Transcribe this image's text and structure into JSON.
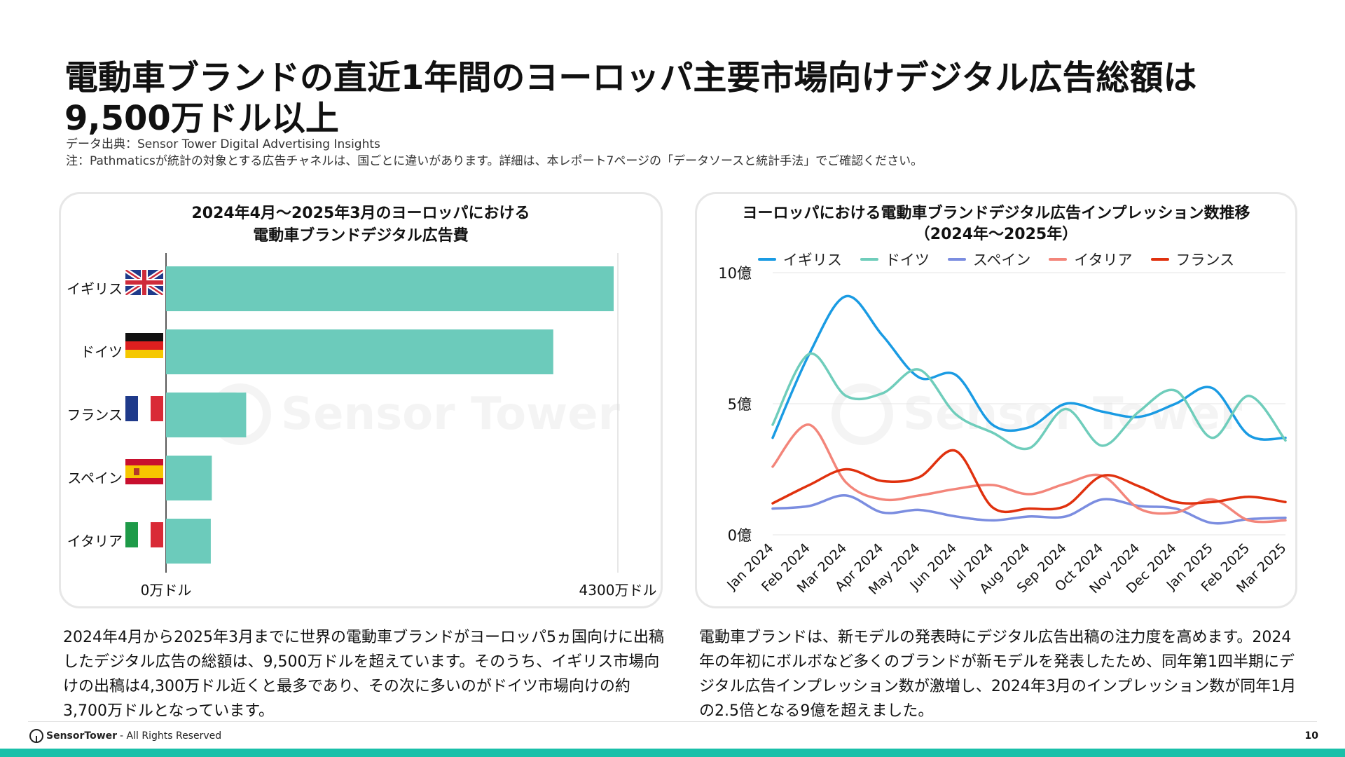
{
  "page": {
    "title": "電動車ブランドの直近1年間のヨーロッパ主要市場向けデジタル広告総額は9,500万ドル以上",
    "source_line": "データ出典：Sensor Tower Digital Advertising Insights",
    "note_line": "注：Pathmaticsが統計の対象とする広告チャネルは、国ごとに違いがあります。詳細は、本レポート7ページの「データソースと統計手法」でご確認ください。",
    "watermark": "Sensor Tower",
    "left_text": "2024年4月から2025年3月までに世界の電動車ブランドがヨーロッパ5ヵ国向けに出稿したデジタル広告の総額は、9,500万ドルを超えています。そのうち、イギリス市場向けの出稿は4,300万ドル近くと最多であり、その次に多いのがドイツ市場向けの約3,700万ドルとなっています。",
    "right_text": "電動車ブランドは、新モデルの発表時にデジタル広告出稿の注力度を高めます。2024年の年初にボルボなど多くのブランドが新モデルを発表したため、同年第1四半期にデジタル広告インプレッション数が激増し、2024年3月のインプレッション数が同年1月の2.5倍となる9億を超えました。",
    "footer_brand": "SensorTower",
    "footer_rights": "- All Rights Reserved",
    "page_number": "10"
  },
  "chart_data": [
    {
      "type": "bar",
      "orientation": "horizontal",
      "title_line1": "2024年4月～2025年3月のヨーロッパにおける",
      "title_line2": "電動車ブランドデジタル広告費",
      "categories": [
        "イギリス",
        "ドイツ",
        "フランス",
        "スペイン",
        "イタリア"
      ],
      "flags": [
        "uk-flag-icon",
        "germany-flag-icon",
        "france-flag-icon",
        "spain-flag-icon",
        "italy-flag-icon"
      ],
      "values": [
        4300,
        3720,
        770,
        440,
        430
      ],
      "unit": "万ドル",
      "xlim": [
        0,
        4300
      ],
      "x_tick_labels": [
        "0万ドル",
        "4300万ドル"
      ],
      "bar_color": "#6ccbbb"
    },
    {
      "type": "line",
      "title_line1": "ヨーロッパにおける電動車ブランドデジタル広告インプレッション数推移",
      "title_line2": "（2024年～2025年）",
      "x": [
        "Jan 2024",
        "Feb 2024",
        "Mar 2024",
        "Apr 2024",
        "May 2024",
        "Jun 2024",
        "Jul 2024",
        "Aug 2024",
        "Sep 2024",
        "Oct 2024",
        "Nov 2024",
        "Dec 2024",
        "Jan 2025",
        "Feb 2025",
        "Mar 2025"
      ],
      "ylim": [
        0,
        10
      ],
      "y_unit": "億",
      "y_ticks": [
        0,
        5,
        10
      ],
      "y_tick_labels": [
        "0億",
        "5億",
        "10億"
      ],
      "grid": true,
      "legend_position": "top",
      "series": [
        {
          "name": "イギリス",
          "color": "#1a9be3",
          "values": [
            3.7,
            6.9,
            9.1,
            7.6,
            6.0,
            6.1,
            4.2,
            4.1,
            5.0,
            4.7,
            4.5,
            5.0,
            5.6,
            3.8,
            3.7
          ]
        },
        {
          "name": "ドイツ",
          "color": "#6fcdbb",
          "values": [
            4.2,
            6.9,
            5.3,
            5.4,
            6.3,
            4.6,
            3.9,
            3.3,
            4.8,
            3.4,
            4.7,
            5.5,
            3.7,
            5.3,
            3.6
          ]
        },
        {
          "name": "スペイン",
          "color": "#7b8de0",
          "values": [
            1.0,
            1.1,
            1.5,
            0.85,
            0.95,
            0.7,
            0.55,
            0.7,
            0.7,
            1.35,
            1.1,
            1.0,
            0.45,
            0.6,
            0.65
          ]
        },
        {
          "name": "イタリア",
          "color": "#f3857a",
          "values": [
            2.6,
            4.2,
            2.0,
            1.35,
            1.5,
            1.75,
            1.9,
            1.55,
            1.95,
            2.25,
            1.0,
            0.85,
            1.35,
            0.55,
            0.55
          ]
        },
        {
          "name": "フランス",
          "color": "#e0310e",
          "values": [
            1.2,
            1.9,
            2.5,
            2.05,
            2.2,
            3.2,
            1.05,
            1.0,
            1.1,
            2.25,
            1.85,
            1.25,
            1.25,
            1.45,
            1.25
          ]
        }
      ]
    }
  ]
}
